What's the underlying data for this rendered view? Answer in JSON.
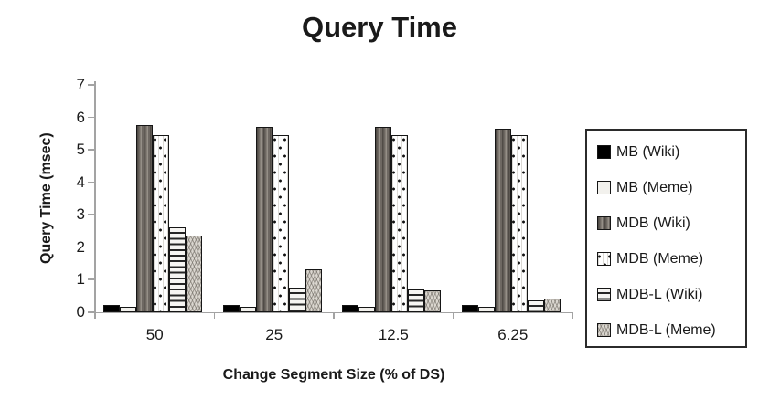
{
  "chart_data": {
    "type": "bar",
    "title": "Query Time",
    "xlabel": "Change Segment Size (% of DS)",
    "ylabel": "Query Time (msec)",
    "categories": [
      "50",
      "25",
      "12.5",
      "6.25"
    ],
    "series": [
      {
        "name": "MB (Wiki)",
        "pattern": "solid-black",
        "values": [
          0.2,
          0.2,
          0.2,
          0.2
        ]
      },
      {
        "name": "MB (Meme)",
        "pattern": "plain-white",
        "values": [
          0.15,
          0.15,
          0.15,
          0.15
        ]
      },
      {
        "name": "MDB (Wiki)",
        "pattern": "vstripe-dark",
        "values": [
          5.75,
          5.7,
          5.7,
          5.65
        ]
      },
      {
        "name": "MDB (Meme)",
        "pattern": "dots-white",
        "values": [
          5.45,
          5.45,
          5.45,
          5.45
        ]
      },
      {
        "name": "MDB-L (Wiki)",
        "pattern": "hstripe",
        "values": [
          2.6,
          0.75,
          0.7,
          0.35
        ]
      },
      {
        "name": "MDB-L (Meme)",
        "pattern": "wavy-gray",
        "values": [
          2.35,
          1.3,
          0.65,
          0.4
        ]
      }
    ],
    "ylim": [
      0,
      7
    ],
    "yticks": [
      0,
      1,
      2,
      3,
      4,
      5,
      6,
      7
    ],
    "legend_position": "right",
    "grid": false
  },
  "colors": {
    "axis": "#a3a3a3",
    "text": "#1a1a1a",
    "bar_border": "#161616",
    "background": "#ffffff"
  }
}
